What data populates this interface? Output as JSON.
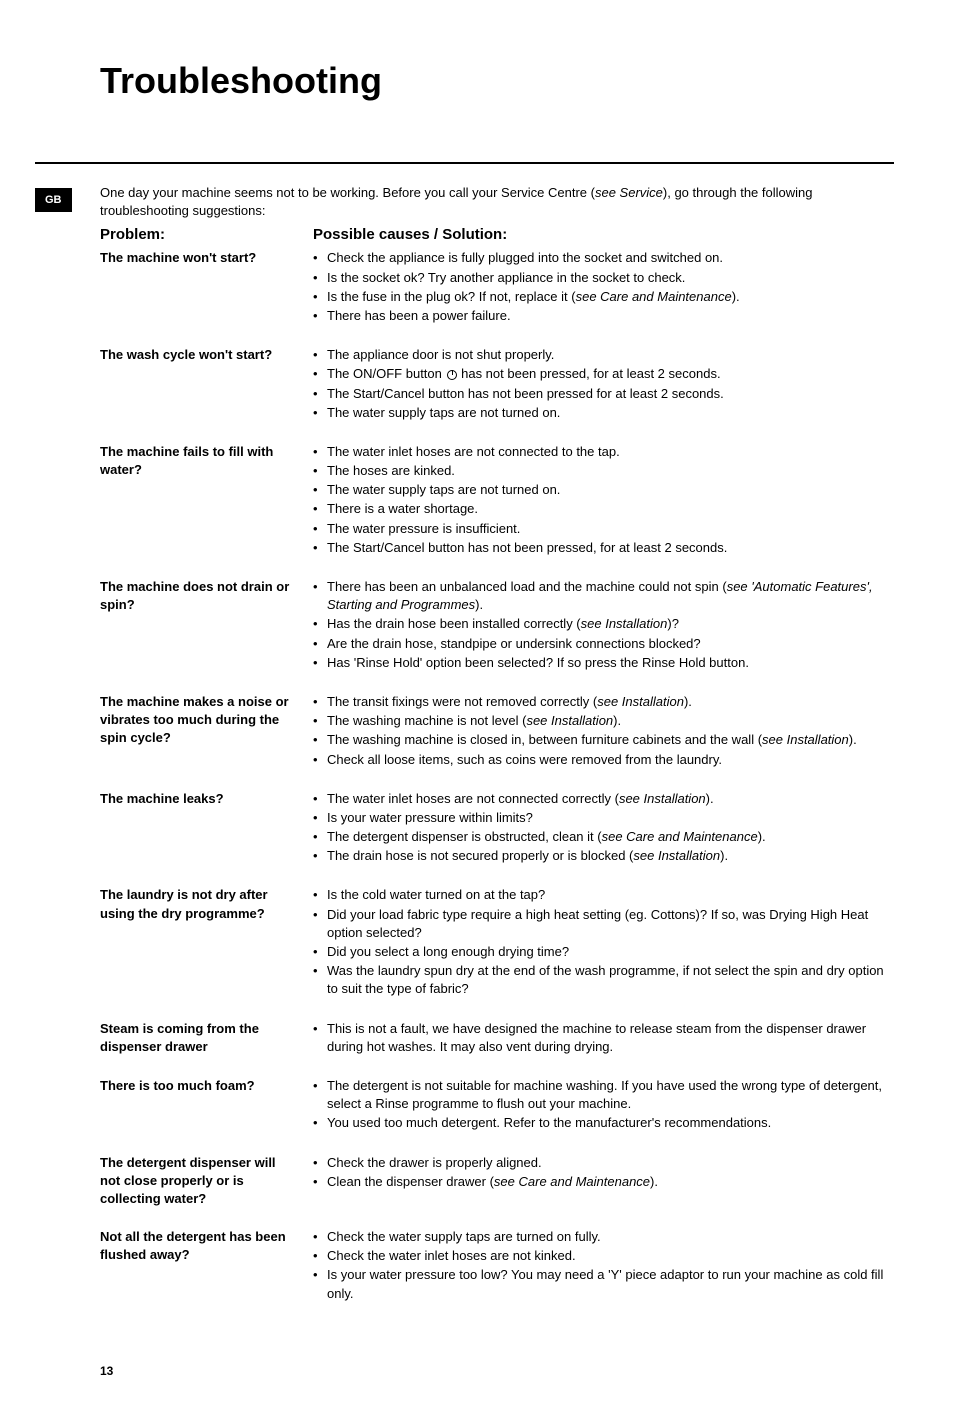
{
  "title": "Troubleshooting",
  "badge": "GB",
  "intro_before": "One day your machine seems not to be working. Before you call your Service Centre (",
  "intro_ref": "see Service",
  "intro_after": "), go through the following troubleshooting suggestions:",
  "header_problem": "Problem:",
  "header_solution": "Possible causes / Solution:",
  "page_number": "13",
  "rows": [
    {
      "problem": "The machine won't start?",
      "items": [
        {
          "text": "Check the appliance is fully plugged into the socket and switched on."
        },
        {
          "text": "Is the socket ok? Try another appliance in the socket to check."
        },
        {
          "html": "Is the fuse in the plug ok? If not, replace it (<span class=\"italic\">see Care and Maintenance</span>)."
        },
        {
          "text": "There has been a power failure."
        }
      ]
    },
    {
      "problem": "The wash cycle won't start?",
      "items": [
        {
          "text": "The appliance door is not shut properly."
        },
        {
          "html": "The ON/OFF button <span class=\"power-icon\"></span> has not been pressed, for at least 2 seconds."
        },
        {
          "text": "The Start/Cancel button has not been pressed for at least 2 seconds."
        },
        {
          "text": "The water supply taps are not turned on."
        }
      ]
    },
    {
      "problem": "The machine fails to fill with water?",
      "items": [
        {
          "text": "The water inlet hoses are not connected to the tap."
        },
        {
          "text": "The hoses are kinked."
        },
        {
          "text": "The water supply taps are not turned on."
        },
        {
          "text": "There is a water shortage."
        },
        {
          "text": "The water pressure is insufficient."
        },
        {
          "text": "The Start/Cancel button has not been pressed, for at least 2 seconds."
        }
      ]
    },
    {
      "problem": "The machine does not drain or spin?",
      "items": [
        {
          "html": "There has been an unbalanced load and the machine could not spin (<span class=\"italic\">see 'Automatic Features', Starting and Programmes</span>)."
        },
        {
          "html": "Has the drain hose been installed correctly (<span class=\"italic\">see Installation</span>)?"
        },
        {
          "text": "Are the drain hose, standpipe or undersink connections blocked?"
        },
        {
          "text": "Has 'Rinse Hold' option been selected? If so press the Rinse Hold button."
        }
      ]
    },
    {
      "problem": "The machine makes a noise or vibrates too much during the spin cycle?",
      "items": [
        {
          "html": "The transit fixings were not removed correctly (<span class=\"italic\">see Installation</span>)."
        },
        {
          "html": "The washing machine is not level (<span class=\"italic\">see Installation</span>)."
        },
        {
          "html": "The washing machine is closed in, between furniture cabinets and the wall (<span class=\"italic\">see Installation</span>)."
        },
        {
          "text": "Check all loose items, such as coins were removed from the laundry."
        }
      ]
    },
    {
      "problem": "The machine leaks?",
      "items": [
        {
          "html": "The water inlet hoses are not connected correctly (<span class=\"italic\">see Installation</span>)."
        },
        {
          "text": "Is your water pressure within limits?"
        },
        {
          "html": "The detergent dispenser is obstructed, clean it (<span class=\"italic\">see Care and Maintenance</span>)."
        },
        {
          "html": "The drain hose is not secured properly or is blocked (<span class=\"italic\">see Installation</span>)."
        }
      ]
    },
    {
      "problem": "The laundry is not dry after using the dry programme?",
      "items": [
        {
          "text": "Is the cold water turned on at the tap?"
        },
        {
          "text": "Did your load fabric type require a high heat setting (eg. Cottons)? If so, was Drying High Heat option selected?"
        },
        {
          "text": "Did you select a long enough drying time?"
        },
        {
          "text": "Was the laundry spun dry at the end of the wash programme, if not select the spin and dry option to suit the type of fabric?"
        }
      ]
    },
    {
      "problem": "Steam is coming from the dispenser drawer",
      "items": [
        {
          "text": "This is not a fault, we have designed the machine to release steam from the dispenser drawer during hot washes. It may also vent during drying."
        }
      ]
    },
    {
      "problem": "There is too much foam?",
      "items": [
        {
          "text": "The detergent is not suitable for machine washing. If you have used the wrong type of detergent, select a Rinse programme to flush out your machine."
        },
        {
          "text": "You used too much detergent. Refer to the manufacturer's recommendations."
        }
      ]
    },
    {
      "problem": "The detergent dispenser will not close properly or is collecting water?",
      "items": [
        {
          "text": "Check the drawer is properly aligned."
        },
        {
          "html": "Clean the dispenser drawer (<span class=\"italic\">see Care and Maintenance</span>)."
        }
      ]
    },
    {
      "problem": "Not all the detergent has been flushed away?",
      "items": [
        {
          "text": "Check the water supply taps are turned on fully."
        },
        {
          "text": "Check the water inlet hoses are not kinked."
        },
        {
          "text": "Is your water pressure too low?  You may need a 'Y' piece adaptor to run your machine as cold fill only."
        }
      ]
    }
  ]
}
